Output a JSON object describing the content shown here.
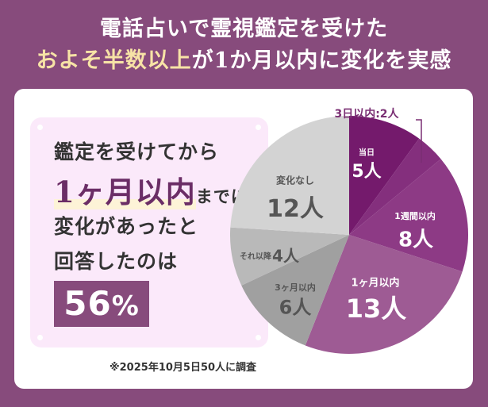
{
  "title": {
    "line1": "電話占いで霊視鑑定を受けた",
    "line2_highlight": "およそ半数以上",
    "line2_rest": "が1か月以内に変化を実感"
  },
  "summary": {
    "line1": "鑑定を受けてから",
    "line2_big": "1ヶ月以内",
    "line2_small": "までに",
    "line3": "変化があったと",
    "line4": "回答したのは",
    "percent_value": "56",
    "percent_symbol": "%"
  },
  "note": "※2025年10月5日50人に調査",
  "callout": "3日以内:2人",
  "chart_data": {
    "type": "pie",
    "title": "電話占いで霊視鑑定を受けたおよそ半数以上が1か月以内に変化を実感",
    "categories": [
      "当日",
      "3日以内",
      "1週間以内",
      "1ヶ月以内",
      "3ヶ月以内",
      "それ以降",
      "変化なし"
    ],
    "values": [
      5,
      2,
      8,
      13,
      6,
      4,
      12
    ],
    "unit": "人",
    "total": 50,
    "start_angle": "12 o'clock, clockwise",
    "colors": [
      "#741a6c",
      "#842f7d",
      "#8d3a85",
      "#9e5b94",
      "#a0a0a0",
      "#b9b9b9",
      "#d3d3d3"
    ],
    "labels": [
      {
        "name": "当日",
        "value": "5人"
      },
      {
        "name": "3日以内",
        "value": "2人"
      },
      {
        "name": "1週間以内",
        "value": "8人"
      },
      {
        "name": "1ヶ月以内",
        "value": "13人"
      },
      {
        "name": "3ヶ月以内",
        "value": "6人"
      },
      {
        "name": "それ以降",
        "value": "4人"
      },
      {
        "name": "変化なし",
        "value": "12人"
      }
    ]
  }
}
